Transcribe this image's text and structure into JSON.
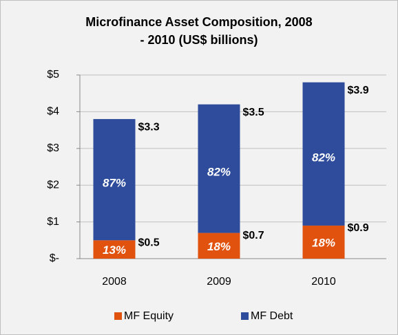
{
  "chart_data": {
    "type": "stacked_bar",
    "title": "Microfinance Asset Composition, 2008 - 2010 (US$ billions)",
    "categories": [
      "2008",
      "2009",
      "2010"
    ],
    "series": [
      {
        "name": "MF Equity",
        "color": "#e0520e",
        "values": [
          0.5,
          0.7,
          0.9
        ],
        "value_labels": [
          "$0.5",
          "$0.7",
          "$0.9"
        ],
        "percent_labels": [
          "13%",
          "18%",
          "18%"
        ]
      },
      {
        "name": "MF Debt",
        "color": "#2e4c9b",
        "values": [
          3.3,
          3.5,
          3.9
        ],
        "value_labels": [
          "$3.3",
          "$3.5",
          "$3.9"
        ],
        "percent_labels": [
          "87%",
          "82%",
          "82%"
        ]
      }
    ],
    "ylim": [
      0,
      5
    ],
    "yticks": [
      {
        "value": 0,
        "label": "$-"
      },
      {
        "value": 1,
        "label": "$1"
      },
      {
        "value": 2,
        "label": "$2"
      },
      {
        "value": 3,
        "label": "$3"
      },
      {
        "value": 4,
        "label": "$4"
      },
      {
        "value": 5,
        "label": "$5"
      }
    ],
    "grid": true,
    "legend": "bottom"
  }
}
